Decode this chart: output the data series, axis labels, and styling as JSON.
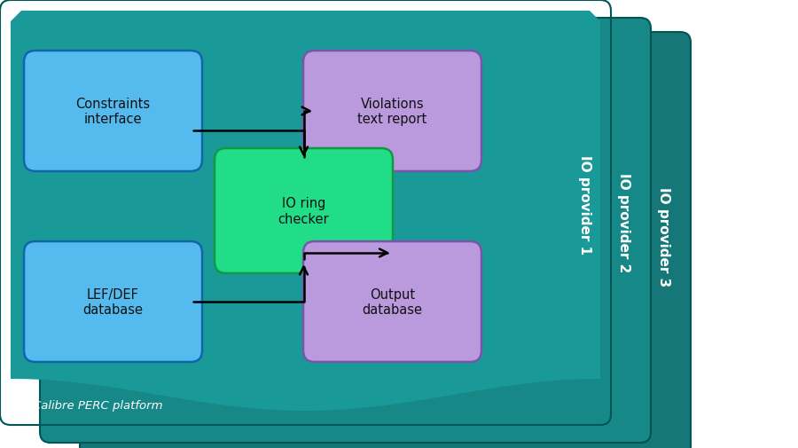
{
  "bg_color": "#ffffff",
  "panel_colors": [
    "#1a9999",
    "#178888",
    "#157777"
  ],
  "panel_edge_color": "#005555",
  "green_box_color": "#22dd88",
  "blue_box_color": "#55bbee",
  "purple_box_color": "#bb99dd",
  "text_color_dark": "#111111",
  "text_color_white": "#ffffff",
  "panel_labels": [
    "IO provider 1",
    "IO provider 2",
    "IO provider 3"
  ],
  "main_label": "Calibre PERC platform",
  "box_labels": {
    "constraints": "Constraints\ninterface",
    "violations": "Violations\ntext report",
    "io_ring": "IO ring\nchecker",
    "lef_def": "LEF/DEF\ndatabase",
    "output": "Output\ndatabase"
  }
}
